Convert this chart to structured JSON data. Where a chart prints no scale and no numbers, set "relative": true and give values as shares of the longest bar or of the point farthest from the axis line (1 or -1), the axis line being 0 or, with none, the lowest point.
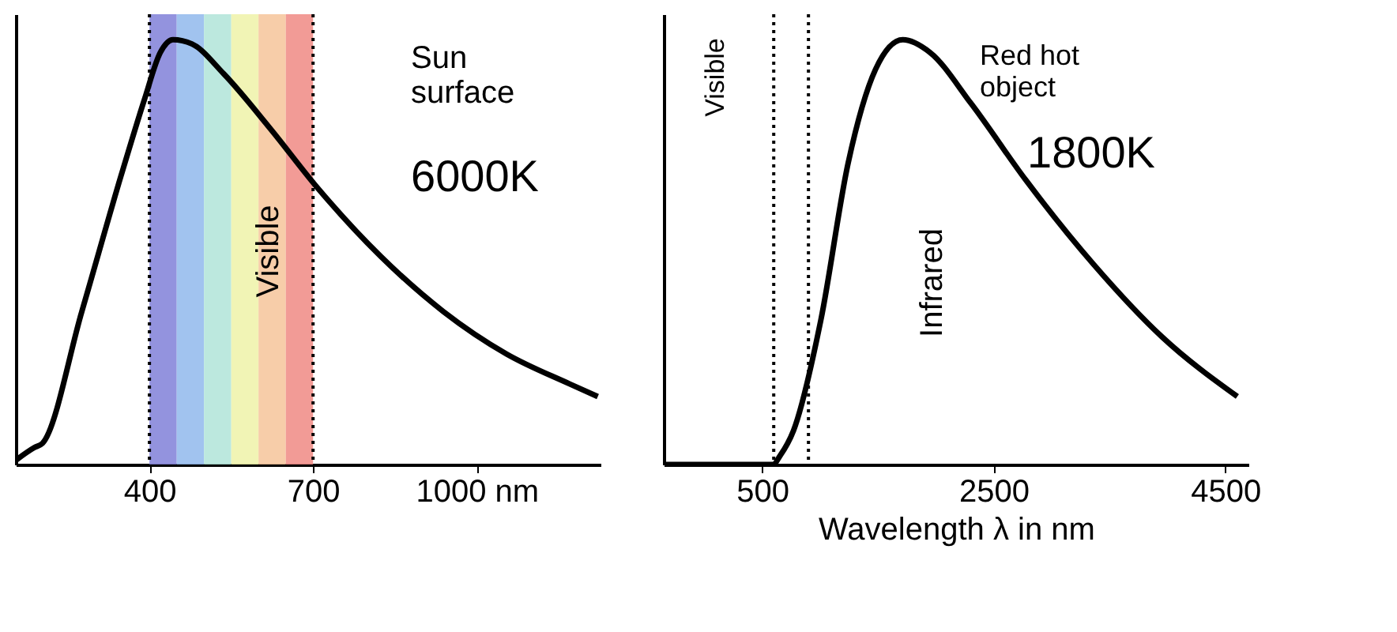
{
  "chart_data": [
    {
      "type": "line",
      "relative": true,
      "color": "#000000",
      "line_style": "solid",
      "marker": "none",
      "grid": false,
      "tick_labels": "x",
      "x": [
        155,
        189,
        204,
        276,
        348,
        391,
        420,
        443,
        478,
        536,
        622,
        709,
        824,
        939,
        1055,
        1170,
        1222
      ],
      "values": [
        0.01,
        0.04,
        0.05,
        0.36,
        0.68,
        0.86,
        0.97,
        1.0,
        0.99,
        0.92,
        0.79,
        0.65,
        0.49,
        0.36,
        0.26,
        0.19,
        0.16
      ],
      "xlim": [
        155,
        1227
      ],
      "xticks": [
        400,
        700,
        {
          "value": 1000,
          "label": "1000 nm"
        }
      ],
      "bands": [
        {
          "axis": "x",
          "from": 400,
          "to": 450,
          "color": "#8080d8"
        },
        {
          "axis": "x",
          "from": 450,
          "to": 500,
          "color": "#90b8ec"
        },
        {
          "axis": "x",
          "from": 500,
          "to": 550,
          "color": "#b0e4d8"
        },
        {
          "axis": "x",
          "from": 550,
          "to": 600,
          "color": "#eef2a8"
        },
        {
          "axis": "x",
          "from": 600,
          "to": 650,
          "color": "#f6c49a"
        },
        {
          "axis": "x",
          "from": 650,
          "to": 700,
          "color": "#f08a84"
        }
      ],
      "ref_lines": [
        {
          "axis": "x",
          "value": 400,
          "line_style": "dotted"
        },
        {
          "axis": "x",
          "value": 700,
          "line_style": "dotted"
        }
      ],
      "annotations": [
        "Sun surface",
        "6000K",
        "Visible"
      ]
    },
    {
      "type": "line",
      "relative": true,
      "color": "#000000",
      "line_style": "solid",
      "marker": "none",
      "grid": false,
      "tick_labels": "x",
      "x": [
        -350,
        594,
        653,
        771,
        1007,
        1243,
        1479,
        1715,
        1950,
        2304,
        2776,
        3366,
        3955,
        4604
      ],
      "values": [
        0,
        0,
        0.02,
        0.08,
        0.34,
        0.71,
        0.93,
        1.0,
        0.97,
        0.85,
        0.67,
        0.47,
        0.3,
        0.16
      ],
      "xlim": [
        -350,
        4700
      ],
      "xticks": [
        500,
        2500,
        4500
      ],
      "xlabel": "Wavelength λ in nm",
      "ref_lines": [
        {
          "axis": "x",
          "value": 600,
          "line_style": "dotted"
        },
        {
          "axis": "x",
          "value": 900,
          "line_style": "dotted"
        }
      ],
      "annotations": [
        "Visible",
        "Red hot object",
        "1800K",
        "Infrared"
      ]
    }
  ]
}
